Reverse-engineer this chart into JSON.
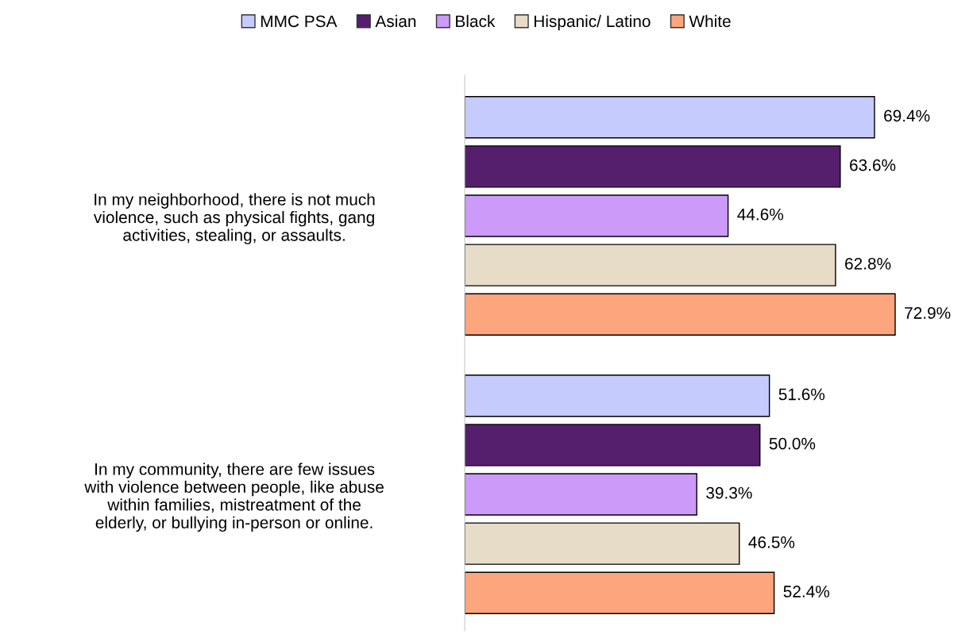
{
  "chart_data": {
    "type": "bar",
    "orientation": "horizontal",
    "categories": [
      "In my neighborhood, there is not much\nviolence, such as physical fights, gang\nactivities, stealing, or assaults.",
      "In my community, there are few issues\nwith violence between people, like abuse\nwithin families, mistreatment of the\nelderly, or bullying in-person or online."
    ],
    "series": [
      {
        "name": "MMC PSA",
        "color": "#c5cbfc",
        "values": [
          69.4,
          51.6
        ],
        "value_labels": [
          "69.4%",
          "51.6%"
        ]
      },
      {
        "name": "Asian",
        "color": "#561f6e",
        "values": [
          63.6,
          50.0
        ],
        "value_labels": [
          "63.6%",
          "50.0%"
        ]
      },
      {
        "name": "Black",
        "color": "#cc9af9",
        "values": [
          44.6,
          39.3
        ],
        "value_labels": [
          "44.6%",
          "39.3%"
        ]
      },
      {
        "name": "Hispanic/ Latino",
        "color": "#e6dcc8",
        "values": [
          62.8,
          46.5
        ],
        "value_labels": [
          "62.8%",
          "46.5%"
        ]
      },
      {
        "name": "White",
        "color": "#fda57d",
        "values": [
          72.9,
          52.4
        ],
        "value_labels": [
          "72.9%",
          "52.4%"
        ]
      }
    ],
    "tick_labels": "y",
    "grid": false,
    "legend": "top"
  }
}
